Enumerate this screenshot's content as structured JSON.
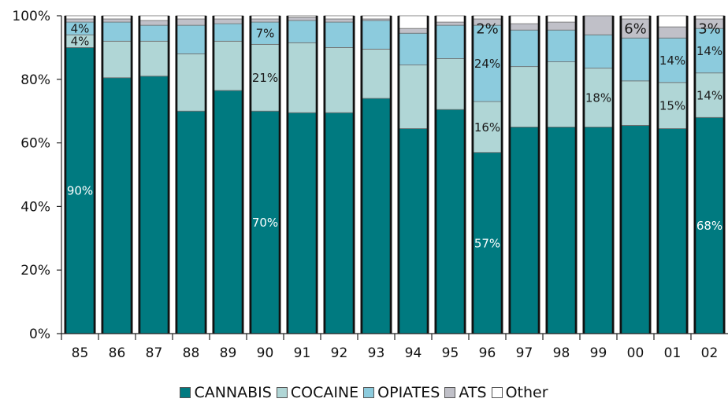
{
  "chart_data": {
    "type": "bar",
    "stacked": true,
    "percent_stacked": true,
    "title": "",
    "xlabel": "",
    "ylabel": "",
    "ylim": [
      0,
      100
    ],
    "yticks": [
      "0%",
      "20%",
      "40%",
      "60%",
      "80%",
      "100%"
    ],
    "categories": [
      "85",
      "86",
      "87",
      "88",
      "89",
      "90",
      "91",
      "92",
      "93",
      "94",
      "95",
      "96",
      "97",
      "98",
      "99",
      "00",
      "01",
      "02"
    ],
    "series": [
      {
        "name": "CANNABIS",
        "color": "#007a80",
        "values": [
          90,
          80.5,
          81,
          70,
          76.5,
          70,
          69.5,
          69.5,
          74,
          64.5,
          70.5,
          57,
          65,
          65,
          65,
          65.5,
          64.5,
          68
        ]
      },
      {
        "name": "COCAINE",
        "color": "#b0d6d6",
        "values": [
          4,
          11.5,
          11,
          18,
          15.5,
          21,
          22,
          20.5,
          15.5,
          20,
          16,
          16,
          19,
          20.5,
          18.5,
          14,
          14.5,
          14
        ]
      },
      {
        "name": "OPIATES",
        "color": "#8ccbdd",
        "values": [
          4,
          6,
          5,
          9,
          5.5,
          7,
          7,
          8,
          9,
          10,
          10.5,
          24,
          11.5,
          10,
          10.5,
          13.5,
          14,
          14
        ]
      },
      {
        "name": "ATS",
        "color": "#c0c0c8",
        "values": [
          1,
          1,
          1.5,
          2,
          1.5,
          1,
          1,
          1,
          0.5,
          1.5,
          1,
          2,
          2,
          2.5,
          6,
          6,
          3.5,
          3
        ]
      },
      {
        "name": "Other",
        "color": "#ffffff",
        "values": [
          1,
          1,
          1.5,
          1,
          1,
          1,
          0.5,
          1,
          1,
          4,
          2,
          1,
          2.5,
          2,
          0,
          1,
          3.5,
          1
        ]
      }
    ],
    "data_labels": [
      {
        "category": "85",
        "series": "CANNABIS",
        "text": "90%"
      },
      {
        "category": "85",
        "series": "COCAINE",
        "text": "4%"
      },
      {
        "category": "85",
        "series": "OPIATES",
        "text": "4%"
      },
      {
        "category": "90",
        "series": "CANNABIS",
        "text": "70%"
      },
      {
        "category": "90",
        "series": "COCAINE",
        "text": "21%"
      },
      {
        "category": "90",
        "series": "OPIATES",
        "text": "7%"
      },
      {
        "category": "96",
        "series": "CANNABIS",
        "text": "57%"
      },
      {
        "category": "96",
        "series": "COCAINE",
        "text": "16%"
      },
      {
        "category": "96",
        "series": "OPIATES",
        "text": "24%"
      },
      {
        "category": "96",
        "series": "ATS",
        "text": "2%"
      },
      {
        "category": "99",
        "series": "COCAINE",
        "text": "18%"
      },
      {
        "category": "00",
        "series": "ATS",
        "text": "6%"
      },
      {
        "category": "01",
        "series": "COCAINE",
        "text": "15%"
      },
      {
        "category": "01",
        "series": "OPIATES",
        "text": "14%"
      },
      {
        "category": "02",
        "series": "CANNABIS",
        "text": "68%"
      },
      {
        "category": "02",
        "series": "COCAINE",
        "text": "14%"
      },
      {
        "category": "02",
        "series": "OPIATES",
        "text": "14%"
      },
      {
        "category": "02",
        "series": "ATS",
        "text": "3%"
      }
    ],
    "legend": {
      "placement": "bottom"
    },
    "grid": false
  }
}
